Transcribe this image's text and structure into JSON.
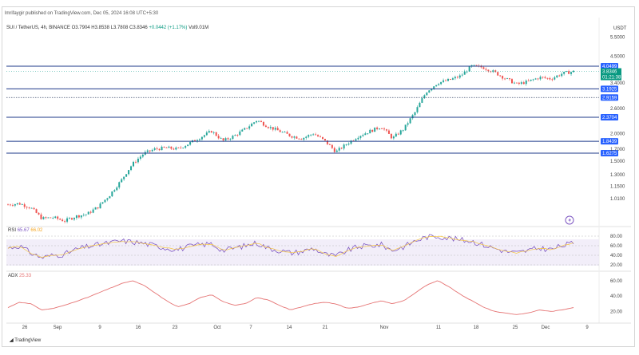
{
  "header": {
    "published_line": "lmrifaygir published on TradingView.com, Dec 05, 2024 16:08 UTC+5:30",
    "symbol": "SUI / TetherUS, 4h, BINANCE",
    "ohlc": "O3.7904 H3.8538 L3.7808 C3.8346",
    "change": "+0.0442 (+1.17%)",
    "volume": "Vol9.01M",
    "currency": "USDT"
  },
  "price_axis": {
    "ticks": [
      "5.5000",
      "4.5000",
      "3.4000",
      "2.6000",
      "2.0000",
      "1.7000",
      "1.5000",
      "1.3000",
      "1.1500",
      "1.0100"
    ]
  },
  "levels": [
    {
      "value": "4.0499",
      "style": "solid"
    },
    {
      "value": "3.1925",
      "style": "solid"
    },
    {
      "value": "2.9159",
      "style": "dotted"
    },
    {
      "value": "2.3704",
      "style": "solid"
    },
    {
      "value": "1.8439",
      "style": "solid"
    },
    {
      "value": "1.6275",
      "style": "solid"
    }
  ],
  "last_price": {
    "value": "3.8346",
    "countdown": "01:21:38"
  },
  "rsi": {
    "label": "RSI",
    "value": "65.67",
    "ma": "66.02",
    "ticks": [
      "80.00",
      "60.00",
      "40.00",
      "20.00"
    ]
  },
  "adx": {
    "label": "ADX",
    "value": "25.33",
    "ticks": [
      "60.00",
      "40.00",
      "20.00"
    ]
  },
  "time_axis": {
    "ticks": [
      "26",
      "Sep",
      "9",
      "16",
      "23",
      "Oct",
      "7",
      "14",
      "21",
      "Nov",
      "11",
      "18",
      "25",
      "Dec",
      "9"
    ]
  },
  "footer": {
    "brand": "TradingView"
  },
  "colors": {
    "up": "#26a69a",
    "down": "#ef5350",
    "level": "#2962ff",
    "rsi": "#7e57c2",
    "adx": "#e57373"
  },
  "chart_data": {
    "type": "line",
    "price_series": [
      0.95,
      0.96,
      0.92,
      0.82,
      0.83,
      0.8,
      0.84,
      0.86,
      0.93,
      1.05,
      1.22,
      1.45,
      1.62,
      1.7,
      1.72,
      1.7,
      1.8,
      1.92,
      2.05,
      1.85,
      1.95,
      2.1,
      2.3,
      2.15,
      2.05,
      1.95,
      1.9,
      2.0,
      1.85,
      1.65,
      1.8,
      1.95,
      2.05,
      2.15,
      1.9,
      2.1,
      2.5,
      3.1,
      3.4,
      3.5,
      3.65,
      4.05,
      4.0,
      3.8,
      3.55,
      3.35,
      3.45,
      3.6,
      3.55,
      3.75,
      3.83
    ],
    "rsi_series": [
      55,
      60,
      45,
      35,
      40,
      42,
      52,
      58,
      62,
      66,
      70,
      68,
      65,
      60,
      55,
      52,
      58,
      62,
      64,
      50,
      55,
      60,
      66,
      55,
      50,
      45,
      48,
      55,
      42,
      38,
      50,
      58,
      60,
      62,
      50,
      58,
      70,
      78,
      80,
      76,
      72,
      70,
      62,
      55,
      48,
      45,
      50,
      55,
      52,
      60,
      65.67
    ],
    "adx_series": [
      25,
      32,
      30,
      22,
      24,
      28,
      33,
      38,
      44,
      50,
      56,
      60,
      54,
      44,
      34,
      26,
      30,
      38,
      42,
      33,
      28,
      30,
      38,
      35,
      28,
      22,
      26,
      30,
      32,
      30,
      24,
      26,
      30,
      34,
      30,
      34,
      44,
      54,
      60,
      52,
      42,
      34,
      26,
      20,
      18,
      16,
      18,
      22,
      20,
      22,
      25.33
    ]
  }
}
